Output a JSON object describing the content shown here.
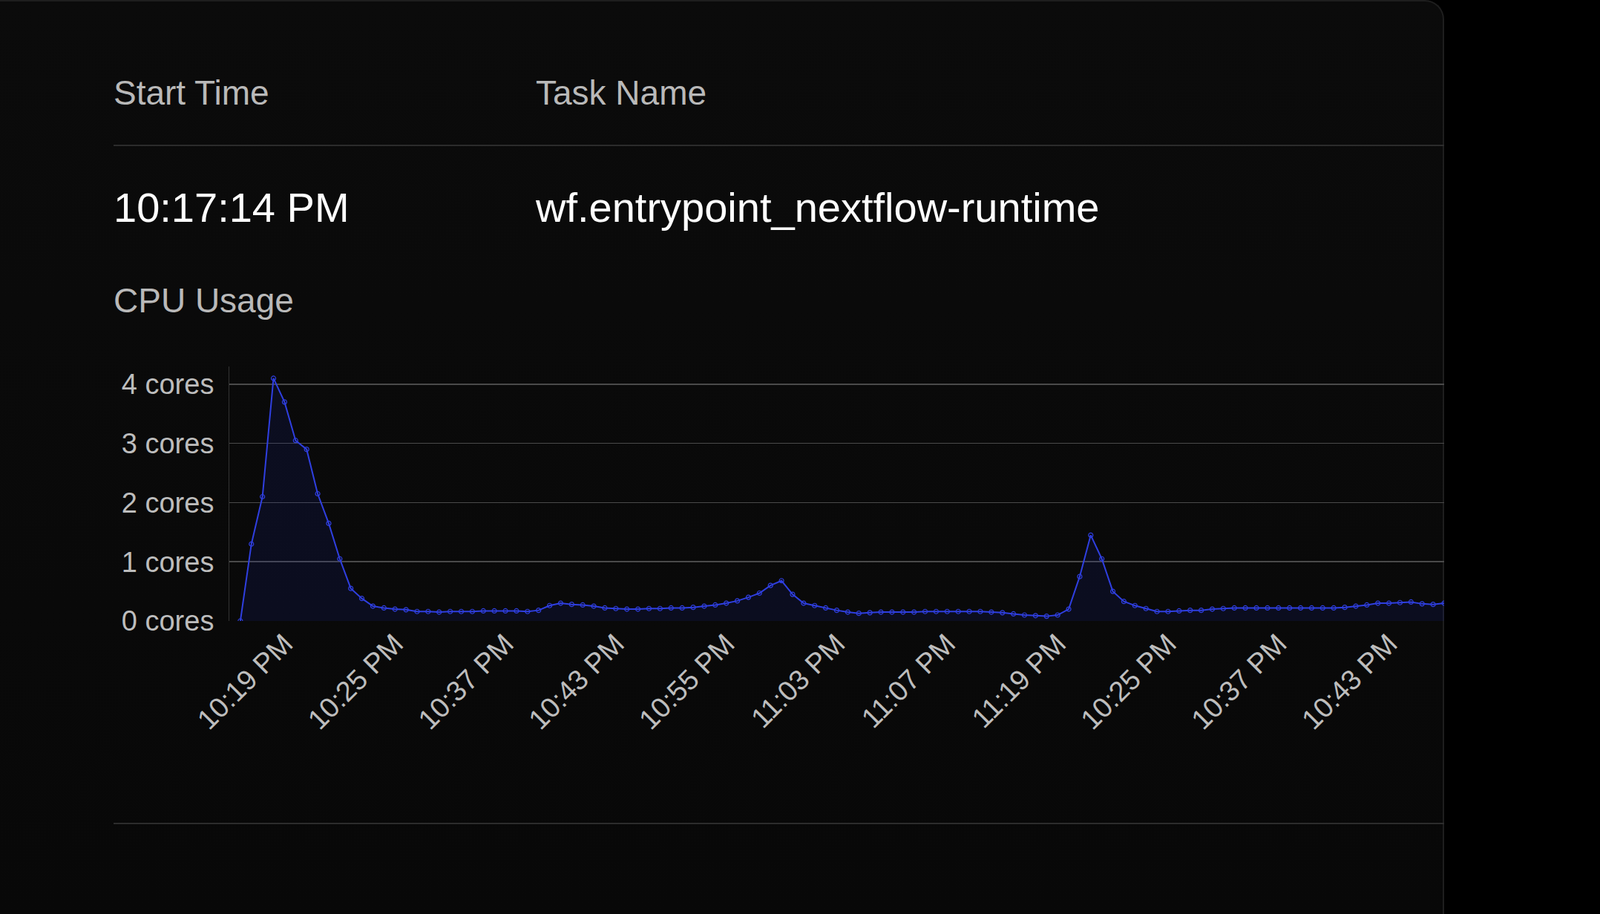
{
  "header": {
    "columns": [
      "Start Time",
      "Task Name"
    ],
    "row": [
      "10:17:14 PM",
      "wf.entrypoint_nextflow-runtime"
    ]
  },
  "chart_data": {
    "type": "area",
    "title": "CPU Usage",
    "categories": [
      null,
      null,
      null,
      null,
      "10:19 PM",
      null,
      null,
      null,
      null,
      null,
      null,
      null,
      null,
      null,
      "10:25 PM",
      null,
      null,
      null,
      null,
      null,
      null,
      null,
      null,
      null,
      "10:37 PM",
      null,
      null,
      null,
      null,
      null,
      null,
      null,
      null,
      null,
      "10:43 PM",
      null,
      null,
      null,
      null,
      null,
      null,
      null,
      null,
      null,
      "10:55 PM",
      null,
      null,
      null,
      null,
      null,
      null,
      null,
      null,
      null,
      "11:03 PM",
      null,
      null,
      null,
      null,
      null,
      null,
      null,
      null,
      null,
      "11:07 PM",
      null,
      null,
      null,
      null,
      null,
      null,
      null,
      null,
      null,
      "11:19 PM",
      null,
      null,
      null,
      null,
      null,
      null,
      null,
      null,
      null,
      "10:25 PM",
      null,
      null,
      null,
      null,
      null,
      null,
      null,
      null,
      null,
      "10:37 PM",
      null,
      null,
      null,
      null,
      null,
      null,
      null,
      null,
      null,
      "10:43 PM",
      null,
      null,
      null,
      null,
      null
    ],
    "values": [
      0,
      1.3,
      2.1,
      4.1,
      3.7,
      3.05,
      2.9,
      2.15,
      1.65,
      1.05,
      0.55,
      0.38,
      0.25,
      0.22,
      0.2,
      0.19,
      0.16,
      0.16,
      0.15,
      0.16,
      0.16,
      0.16,
      0.17,
      0.17,
      0.17,
      0.17,
      0.16,
      0.18,
      0.26,
      0.3,
      0.28,
      0.27,
      0.25,
      0.22,
      0.21,
      0.2,
      0.2,
      0.21,
      0.21,
      0.22,
      0.22,
      0.23,
      0.25,
      0.27,
      0.3,
      0.34,
      0.4,
      0.47,
      0.6,
      0.68,
      0.45,
      0.3,
      0.26,
      0.22,
      0.18,
      0.15,
      0.13,
      0.14,
      0.15,
      0.15,
      0.15,
      0.15,
      0.16,
      0.16,
      0.16,
      0.16,
      0.16,
      0.16,
      0.15,
      0.14,
      0.12,
      0.1,
      0.09,
      0.08,
      0.1,
      0.2,
      0.75,
      1.45,
      1.05,
      0.5,
      0.33,
      0.26,
      0.21,
      0.16,
      0.16,
      0.17,
      0.18,
      0.18,
      0.2,
      0.21,
      0.22,
      0.22,
      0.22,
      0.22,
      0.22,
      0.22,
      0.22,
      0.22,
      0.22,
      0.22,
      0.23,
      0.25,
      0.27,
      0.3,
      0.3,
      0.31,
      0.32,
      0.29,
      0.28,
      0.3
    ],
    "color": "#2f3fe0",
    "marker": "circle-open",
    "line_style": "solid",
    "ylim": [
      0,
      4.3
    ],
    "yticks": [
      {
        "value": 0,
        "label": "0 cores"
      },
      {
        "value": 1,
        "label": "1 cores"
      },
      {
        "value": 2,
        "label": "2 cores"
      },
      {
        "value": 3,
        "label": "3 cores"
      },
      {
        "value": 4,
        "label": "4 cores"
      }
    ],
    "grid": true
  }
}
